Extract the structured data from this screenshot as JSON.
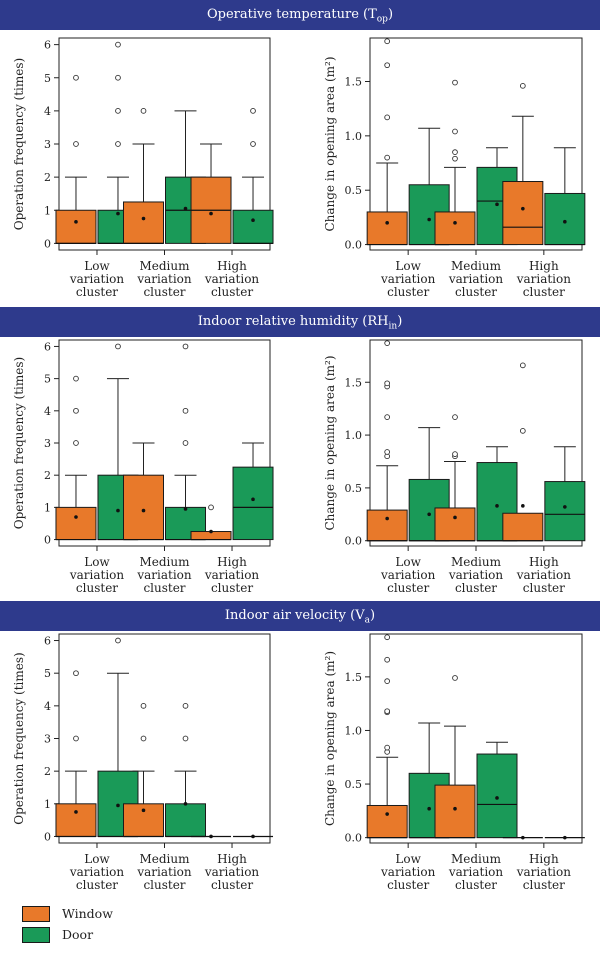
{
  "sections": [
    {
      "title": "Operative temperature (T",
      "sub": "op",
      "suffix": ")"
    },
    {
      "title": "Indoor relative humidity (RH",
      "sub": "in",
      "suffix": ")"
    },
    {
      "title": "Indoor air velocity (V",
      "sub": "a",
      "suffix": ")"
    }
  ],
  "legend": {
    "window": "Window",
    "door": "Door"
  },
  "colors": {
    "window": "#e8792a",
    "door": "#1a9a58",
    "banner": "#2e3a8c"
  },
  "chart_data": [
    {
      "type": "box",
      "section": 0,
      "ylabel": "Operation frequency (times)",
      "ylim": [
        -0.2,
        6.2
      ],
      "yticks": [
        0,
        1,
        2,
        3,
        4,
        5,
        6
      ],
      "categories": [
        "Low variation cluster",
        "Medium variation cluster",
        "High variation cluster"
      ],
      "series": {
        "Window": [
          {
            "q1": 0,
            "med": 0,
            "q3": 1,
            "wlo": 0,
            "whi": 2,
            "mean": 0.65,
            "out": [
              3,
              5
            ]
          },
          {
            "q1": 0,
            "med": 0,
            "q3": 1.25,
            "wlo": 0,
            "whi": 3,
            "mean": 0.75,
            "out": [
              4
            ]
          },
          {
            "q1": 0,
            "med": 1,
            "q3": 2,
            "wlo": 0,
            "whi": 3,
            "mean": 0.9,
            "out": []
          }
        ],
        "Door": [
          {
            "q1": 0,
            "med": 0,
            "q3": 1,
            "wlo": 0,
            "whi": 2,
            "mean": 0.9,
            "out": [
              3,
              4,
              5,
              6
            ]
          },
          {
            "q1": 0,
            "med": 1,
            "q3": 2,
            "wlo": 0,
            "whi": 4,
            "mean": 1.05,
            "out": []
          },
          {
            "q1": 0,
            "med": 0,
            "q3": 1,
            "wlo": 0,
            "whi": 2,
            "mean": 0.7,
            "out": [
              3,
              4
            ]
          }
        ]
      }
    },
    {
      "type": "box",
      "section": 0,
      "ylabel": "Change in opening area (m²)",
      "ylim": [
        -0.05,
        1.9
      ],
      "yticks": [
        0.0,
        0.5,
        1.0,
        1.5
      ],
      "categories": [
        "Low variation cluster",
        "Medium variation cluster",
        "High variation cluster"
      ],
      "series": {
        "Window": [
          {
            "q1": 0,
            "med": 0,
            "q3": 0.3,
            "wlo": 0,
            "whi": 0.75,
            "mean": 0.2,
            "out": [
              0.8,
              1.17,
              1.65,
              1.87
            ]
          },
          {
            "q1": 0,
            "med": 0,
            "q3": 0.3,
            "wlo": 0,
            "whi": 0.71,
            "mean": 0.2,
            "out": [
              0.79,
              0.85,
              1.04,
              1.49
            ]
          },
          {
            "q1": 0,
            "med": 0.16,
            "q3": 0.58,
            "wlo": 0,
            "whi": 1.18,
            "mean": 0.33,
            "out": [
              1.46
            ]
          }
        ],
        "Door": [
          {
            "q1": 0,
            "med": 0,
            "q3": 0.55,
            "wlo": 0,
            "whi": 1.07,
            "mean": 0.23,
            "out": []
          },
          {
            "q1": 0,
            "med": 0.4,
            "q3": 0.71,
            "wlo": 0,
            "whi": 0.89,
            "mean": 0.37,
            "out": []
          },
          {
            "q1": 0,
            "med": 0,
            "q3": 0.47,
            "wlo": 0,
            "whi": 0.89,
            "mean": 0.21,
            "out": []
          }
        ]
      }
    },
    {
      "type": "box",
      "section": 1,
      "ylabel": "Operation frequency (times)",
      "ylim": [
        -0.2,
        6.2
      ],
      "yticks": [
        0,
        1,
        2,
        3,
        4,
        5,
        6
      ],
      "categories": [
        "Low variation cluster",
        "Medium variation cluster",
        "High variation cluster"
      ],
      "series": {
        "Window": [
          {
            "q1": 0,
            "med": 0,
            "q3": 1,
            "wlo": 0,
            "whi": 2,
            "mean": 0.7,
            "out": [
              3,
              4,
              5
            ]
          },
          {
            "q1": 0,
            "med": 0,
            "q3": 2,
            "wlo": 0,
            "whi": 3,
            "mean": 0.9,
            "out": []
          },
          {
            "q1": 0,
            "med": 0,
            "q3": 0.25,
            "wlo": 0,
            "whi": 0.25,
            "mean": 0.25,
            "out": [
              1
            ]
          }
        ],
        "Door": [
          {
            "q1": 0,
            "med": 0,
            "q3": 2,
            "wlo": 0,
            "whi": 5,
            "mean": 0.9,
            "out": [
              6
            ]
          },
          {
            "q1": 0,
            "med": 0,
            "q3": 1,
            "wlo": 0,
            "whi": 2,
            "mean": 0.95,
            "out": [
              3,
              4,
              6
            ]
          },
          {
            "q1": 0,
            "med": 1,
            "q3": 2.25,
            "wlo": 0,
            "whi": 3,
            "mean": 1.25,
            "out": []
          }
        ]
      }
    },
    {
      "type": "box",
      "section": 1,
      "ylabel": "Change in opening area (m²)",
      "ylim": [
        -0.05,
        1.9
      ],
      "yticks": [
        0.0,
        0.5,
        1.0,
        1.5
      ],
      "categories": [
        "Low variation cluster",
        "Medium variation cluster",
        "High variation cluster"
      ],
      "series": {
        "Window": [
          {
            "q1": 0,
            "med": 0,
            "q3": 0.29,
            "wlo": 0,
            "whi": 0.71,
            "mean": 0.21,
            "out": [
              0.8,
              0.84,
              1.17,
              1.46,
              1.49,
              1.87
            ]
          },
          {
            "q1": 0,
            "med": 0,
            "q3": 0.31,
            "wlo": 0,
            "whi": 0.75,
            "mean": 0.22,
            "out": [
              0.8,
              0.82,
              1.17
            ]
          },
          {
            "q1": 0,
            "med": 0,
            "q3": 0.26,
            "wlo": 0,
            "whi": 0.26,
            "mean": 0.33,
            "out": [
              1.04,
              1.66
            ]
          }
        ],
        "Door": [
          {
            "q1": 0,
            "med": 0,
            "q3": 0.58,
            "wlo": 0,
            "whi": 1.07,
            "mean": 0.25,
            "out": []
          },
          {
            "q1": 0,
            "med": 0,
            "q3": 0.74,
            "wlo": 0,
            "whi": 0.89,
            "mean": 0.33,
            "out": []
          },
          {
            "q1": 0,
            "med": 0.25,
            "q3": 0.56,
            "wlo": 0,
            "whi": 0.89,
            "mean": 0.32,
            "out": []
          }
        ]
      }
    },
    {
      "type": "box",
      "section": 2,
      "ylabel": "Operation frequency (times)",
      "ylim": [
        -0.2,
        6.2
      ],
      "yticks": [
        0,
        1,
        2,
        3,
        4,
        5,
        6
      ],
      "categories": [
        "Low variation cluster",
        "Medium variation cluster",
        "High variation cluster"
      ],
      "series": {
        "Window": [
          {
            "q1": 0,
            "med": 0,
            "q3": 1,
            "wlo": 0,
            "whi": 2,
            "mean": 0.75,
            "out": [
              3,
              5
            ]
          },
          {
            "q1": 0,
            "med": 0,
            "q3": 1,
            "wlo": 0,
            "whi": 2,
            "mean": 0.8,
            "out": [
              3,
              4
            ]
          },
          {
            "q1": 0,
            "med": 0,
            "q3": 0,
            "wlo": 0,
            "whi": 0,
            "mean": 0,
            "out": []
          }
        ],
        "Door": [
          {
            "q1": 0,
            "med": 0,
            "q3": 2,
            "wlo": 0,
            "whi": 5,
            "mean": 0.95,
            "out": [
              6
            ]
          },
          {
            "q1": 0,
            "med": 0,
            "q3": 1,
            "wlo": 0,
            "whi": 2,
            "mean": 1.0,
            "out": [
              3,
              4
            ]
          },
          {
            "q1": 0,
            "med": 0,
            "q3": 0,
            "wlo": 0,
            "whi": 0,
            "mean": 0,
            "out": []
          }
        ]
      }
    },
    {
      "type": "box",
      "section": 2,
      "ylabel": "Change in opening area (m²)",
      "ylim": [
        -0.05,
        1.9
      ],
      "yticks": [
        0.0,
        0.5,
        1.0,
        1.5
      ],
      "categories": [
        "Low variation cluster",
        "Medium variation cluster",
        "High variation cluster"
      ],
      "series": {
        "Window": [
          {
            "q1": 0,
            "med": 0,
            "q3": 0.3,
            "wlo": 0,
            "whi": 0.75,
            "mean": 0.22,
            "out": [
              0.8,
              0.84,
              1.17,
              1.18,
              1.46,
              1.66,
              1.87
            ]
          },
          {
            "q1": 0,
            "med": 0,
            "q3": 0.49,
            "wlo": 0,
            "whi": 1.04,
            "mean": 0.27,
            "out": [
              1.49
            ]
          },
          {
            "q1": 0,
            "med": 0,
            "q3": 0,
            "wlo": 0,
            "whi": 0,
            "mean": 0,
            "out": []
          }
        ],
        "Door": [
          {
            "q1": 0,
            "med": 0,
            "q3": 0.6,
            "wlo": 0,
            "whi": 1.07,
            "mean": 0.27,
            "out": []
          },
          {
            "q1": 0,
            "med": 0.31,
            "q3": 0.78,
            "wlo": 0,
            "whi": 0.89,
            "mean": 0.37,
            "out": []
          },
          {
            "q1": 0,
            "med": 0,
            "q3": 0,
            "wlo": 0,
            "whi": 0,
            "mean": 0,
            "out": []
          }
        ]
      }
    }
  ]
}
